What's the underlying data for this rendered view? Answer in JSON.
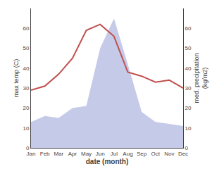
{
  "chart_data": {
    "type": "line",
    "categories": [
      "Jan",
      "Feb",
      "Mar",
      "Apr",
      "May",
      "Jun",
      "Jul",
      "Aug",
      "Sep",
      "Oct",
      "Nov",
      "Dec"
    ],
    "xlabel": "date (month)",
    "ylabel": "max temp (C)",
    "y2label": "med. precipitation\n(kg/m2)",
    "series": [
      {
        "type": "line",
        "color": "#c0504d",
        "values": [
          29,
          31,
          37,
          45,
          59,
          62,
          56,
          38,
          36,
          33,
          34,
          30
        ]
      },
      {
        "type": "area",
        "color": "#c5cae8",
        "axis": "y2",
        "values": [
          13,
          16,
          15,
          20,
          21,
          50,
          65,
          42,
          18,
          13,
          12,
          11
        ]
      }
    ],
    "ylim": [
      0,
      70
    ],
    "yticks": [
      0,
      10,
      20,
      30,
      40,
      50,
      60
    ],
    "y2lim": [
      0,
      70
    ],
    "y2ticks": [
      0,
      10,
      20,
      30,
      40,
      50,
      60
    ],
    "grid": false
  }
}
